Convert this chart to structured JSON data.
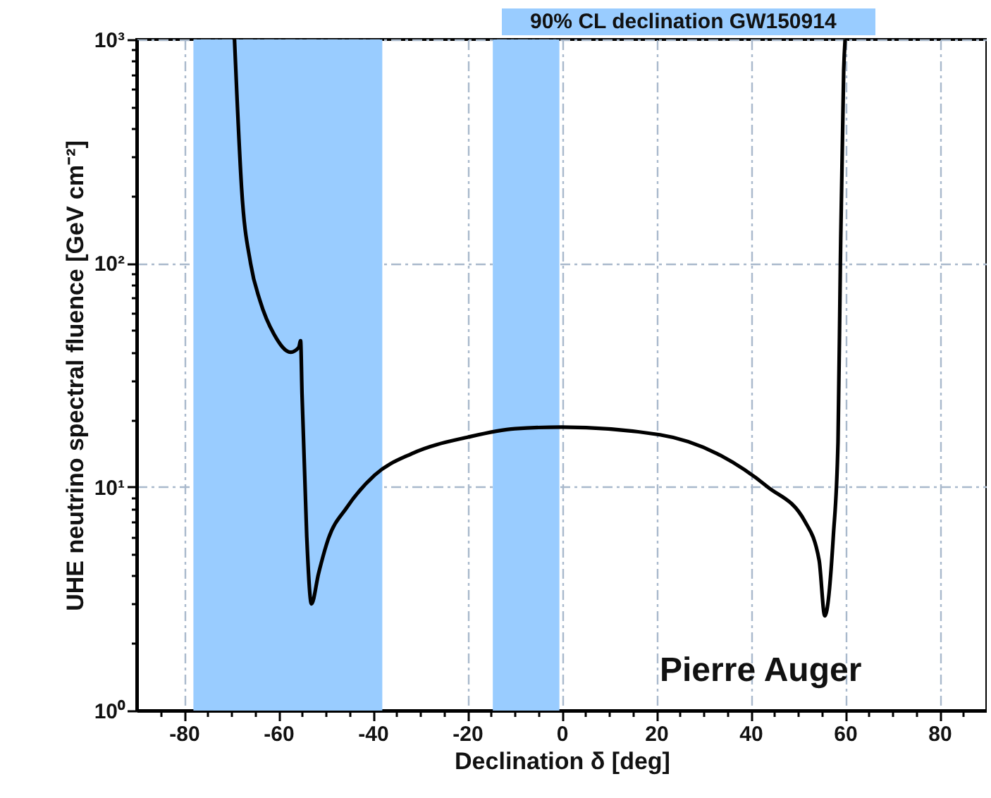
{
  "chart_data": {
    "type": "line",
    "xlabel": "Declination δ [deg]",
    "ylabel": "UHE neutrino spectral fluence [GeV cm⁻²]",
    "log": "y",
    "grid": true,
    "line_style": "solid",
    "marker": "none",
    "xlim": [
      -90,
      90
    ],
    "xticks": [
      {
        "value": -85,
        "label": null
      },
      -80,
      {
        "value": -75,
        "label": null
      },
      {
        "value": -70,
        "label": null
      },
      {
        "value": -65,
        "label": null
      },
      -60,
      {
        "value": -55,
        "label": null
      },
      {
        "value": -50,
        "label": null
      },
      {
        "value": -45,
        "label": null
      },
      -40,
      {
        "value": -35,
        "label": null
      },
      {
        "value": -30,
        "label": null
      },
      {
        "value": -25,
        "label": null
      },
      -20,
      {
        "value": -15,
        "label": null
      },
      {
        "value": -10,
        "label": null
      },
      {
        "value": -5,
        "label": null
      },
      0,
      {
        "value": 5,
        "label": null
      },
      {
        "value": 10,
        "label": null
      },
      {
        "value": 15,
        "label": null
      },
      20,
      {
        "value": 25,
        "label": null
      },
      {
        "value": 30,
        "label": null
      },
      {
        "value": 35,
        "label": null
      },
      40,
      {
        "value": 45,
        "label": null
      },
      {
        "value": 50,
        "label": null
      },
      {
        "value": 55,
        "label": null
      },
      60,
      {
        "value": 65,
        "label": null
      },
      {
        "value": 70,
        "label": null
      },
      {
        "value": 75,
        "label": null
      },
      80,
      {
        "value": 85,
        "label": null
      }
    ],
    "ylim": [
      1,
      1000
    ],
    "yticks": [
      {
        "value": 1,
        "label": "10⁰"
      },
      {
        "value": 2,
        "label": null
      },
      {
        "value": 3,
        "label": null
      },
      {
        "value": 4,
        "label": null
      },
      {
        "value": 5,
        "label": null
      },
      {
        "value": 6,
        "label": null
      },
      {
        "value": 7,
        "label": null
      },
      {
        "value": 8,
        "label": null
      },
      {
        "value": 9,
        "label": null
      },
      {
        "value": 10,
        "label": "10¹"
      },
      {
        "value": 20,
        "label": null
      },
      {
        "value": 30,
        "label": null
      },
      {
        "value": 40,
        "label": null
      },
      {
        "value": 50,
        "label": null
      },
      {
        "value": 60,
        "label": null
      },
      {
        "value": 70,
        "label": null
      },
      {
        "value": 80,
        "label": null
      },
      {
        "value": 90,
        "label": null
      },
      {
        "value": 100,
        "label": "10²"
      },
      {
        "value": 200,
        "label": null
      },
      {
        "value": 300,
        "label": null
      },
      {
        "value": 400,
        "label": null
      },
      {
        "value": 500,
        "label": null
      },
      {
        "value": 600,
        "label": null
      },
      {
        "value": 700,
        "label": null
      },
      {
        "value": 800,
        "label": null
      },
      {
        "value": 900,
        "label": null
      },
      {
        "value": 1000,
        "label": "10³"
      }
    ],
    "bands": [
      {
        "axis": "x",
        "from": -78,
        "to": -38,
        "color": "#99ccff"
      },
      {
        "axis": "x",
        "from": -14.6,
        "to": -0.5,
        "color": "#99ccff"
      }
    ],
    "annotations": [
      "90% CL declination GW150914",
      "Pierre Auger"
    ],
    "series": [
      {
        "color": "#000000",
        "x": [
          -69.3,
          -68.8,
          -67.8,
          -65.9,
          -63.9,
          -60.9,
          -57.4,
          -55.7,
          -55.3,
          -55.0,
          -54.0,
          -53.0,
          -51.5,
          -49.5,
          -45.5,
          -39.6,
          -31.7,
          -19.8,
          -9.9,
          0,
          20.8,
          33.7,
          43.6,
          51.5,
          54.5,
          55.7,
          57.5,
          58.5,
          59.0,
          59.7,
          60.0
        ],
        "values": [
          1000,
          570,
          217,
          100,
          68,
          48,
          40,
          42,
          45,
          26,
          6.0,
          3.0,
          4.1,
          5.8,
          8.1,
          11.3,
          14.1,
          16.7,
          18.2,
          18.5,
          17.1,
          13.8,
          10,
          7.0,
          4.7,
          2.65,
          6.0,
          15.9,
          100,
          725,
          1000
        ]
      }
    ]
  }
}
